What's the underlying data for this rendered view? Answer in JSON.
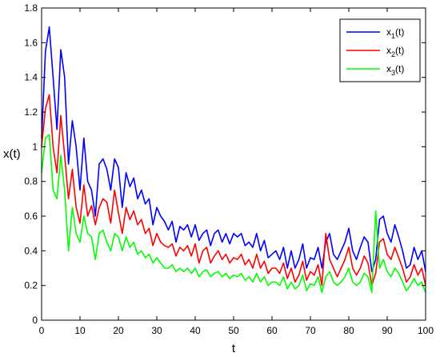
{
  "chart_data": {
    "type": "line",
    "xlabel": "t",
    "ylabel": "x(t)",
    "xlim": [
      0,
      100
    ],
    "ylim": [
      0,
      1.8
    ],
    "x_ticks": [
      0,
      10,
      20,
      30,
      40,
      50,
      60,
      70,
      80,
      90,
      100
    ],
    "x_tick_labels": [
      "0",
      "10",
      "20",
      "30",
      "40",
      "50",
      "60",
      "70",
      "80",
      "90",
      "100"
    ],
    "y_ticks": [
      0,
      0.2,
      0.4,
      0.6,
      0.8,
      1.0,
      1.2,
      1.4,
      1.6,
      1.8
    ],
    "y_tick_labels": [
      "0",
      "0.2",
      "0.4",
      "0.6",
      "0.8",
      "1",
      "1.2",
      "1.4",
      "1.6",
      "1.8"
    ],
    "grid": false,
    "legend_position": "top-right",
    "series": [
      {
        "name": "x1(t)",
        "legend": {
          "base": "x",
          "sub": "1",
          "suffix": "(t)"
        },
        "color": "#0000ff",
        "x": [
          0,
          1,
          2,
          3,
          4,
          5,
          6,
          7,
          8,
          9,
          10,
          11,
          12,
          13,
          14,
          15,
          16,
          17,
          18,
          19,
          20,
          21,
          22,
          23,
          24,
          25,
          26,
          27,
          28,
          29,
          30,
          31,
          32,
          33,
          34,
          35,
          36,
          37,
          38,
          39,
          40,
          41,
          42,
          43,
          44,
          45,
          46,
          47,
          48,
          49,
          50,
          51,
          52,
          53,
          54,
          55,
          56,
          57,
          58,
          59,
          60,
          61,
          62,
          63,
          64,
          65,
          66,
          67,
          68,
          69,
          70,
          71,
          72,
          73,
          74,
          75,
          76,
          77,
          78,
          79,
          80,
          81,
          82,
          83,
          84,
          85,
          86,
          87,
          88,
          89,
          90,
          91,
          92,
          93,
          94,
          95,
          96,
          97,
          98,
          99,
          100
        ],
        "values": [
          1.05,
          1.55,
          1.69,
          1.4,
          1.1,
          1.56,
          1.4,
          0.9,
          1.15,
          1.0,
          0.75,
          1.05,
          0.8,
          0.75,
          0.6,
          0.9,
          0.93,
          0.87,
          0.75,
          0.93,
          0.88,
          0.65,
          0.85,
          0.77,
          0.82,
          0.7,
          0.75,
          0.67,
          0.7,
          0.55,
          0.65,
          0.6,
          0.57,
          0.52,
          0.57,
          0.45,
          0.54,
          0.52,
          0.55,
          0.48,
          0.55,
          0.46,
          0.5,
          0.52,
          0.43,
          0.5,
          0.52,
          0.45,
          0.5,
          0.44,
          0.5,
          0.48,
          0.5,
          0.43,
          0.45,
          0.42,
          0.5,
          0.4,
          0.46,
          0.36,
          0.38,
          0.4,
          0.35,
          0.42,
          0.3,
          0.4,
          0.3,
          0.35,
          0.44,
          0.3,
          0.36,
          0.35,
          0.42,
          0.3,
          0.45,
          0.5,
          0.38,
          0.35,
          0.4,
          0.45,
          0.53,
          0.4,
          0.35,
          0.42,
          0.48,
          0.45,
          0.28,
          0.35,
          0.58,
          0.6,
          0.5,
          0.45,
          0.55,
          0.48,
          0.4,
          0.3,
          0.32,
          0.42,
          0.35,
          0.4,
          0.28
        ]
      },
      {
        "name": "x2(t)",
        "legend": {
          "base": "x",
          "sub": "2",
          "suffix": "(t)"
        },
        "color": "#ff0000",
        "x": [
          0,
          1,
          2,
          3,
          4,
          5,
          6,
          7,
          8,
          9,
          10,
          11,
          12,
          13,
          14,
          15,
          16,
          17,
          18,
          19,
          20,
          21,
          22,
          23,
          24,
          25,
          26,
          27,
          28,
          29,
          30,
          31,
          32,
          33,
          34,
          35,
          36,
          37,
          38,
          39,
          40,
          41,
          42,
          43,
          44,
          45,
          46,
          47,
          48,
          49,
          50,
          51,
          52,
          53,
          54,
          55,
          56,
          57,
          58,
          59,
          60,
          61,
          62,
          63,
          64,
          65,
          66,
          67,
          68,
          69,
          70,
          71,
          72,
          73,
          74,
          75,
          76,
          77,
          78,
          79,
          80,
          81,
          82,
          83,
          84,
          85,
          86,
          87,
          88,
          89,
          90,
          91,
          92,
          93,
          94,
          95,
          96,
          97,
          98,
          99,
          100
        ],
        "values": [
          1.0,
          1.22,
          1.3,
          1.0,
          0.85,
          1.18,
          0.95,
          0.7,
          0.87,
          0.65,
          0.56,
          0.78,
          0.6,
          0.66,
          0.55,
          0.65,
          0.7,
          0.68,
          0.56,
          0.75,
          0.62,
          0.5,
          0.65,
          0.58,
          0.63,
          0.55,
          0.58,
          0.5,
          0.53,
          0.43,
          0.5,
          0.45,
          0.43,
          0.42,
          0.44,
          0.37,
          0.42,
          0.4,
          0.43,
          0.37,
          0.44,
          0.33,
          0.4,
          0.42,
          0.33,
          0.37,
          0.4,
          0.35,
          0.38,
          0.33,
          0.36,
          0.35,
          0.38,
          0.32,
          0.35,
          0.3,
          0.38,
          0.3,
          0.34,
          0.27,
          0.3,
          0.3,
          0.27,
          0.33,
          0.24,
          0.3,
          0.22,
          0.26,
          0.34,
          0.23,
          0.28,
          0.26,
          0.32,
          0.2,
          0.5,
          0.35,
          0.3,
          0.25,
          0.3,
          0.35,
          0.42,
          0.3,
          0.26,
          0.3,
          0.37,
          0.33,
          0.2,
          0.27,
          0.45,
          0.47,
          0.38,
          0.35,
          0.42,
          0.36,
          0.3,
          0.22,
          0.25,
          0.32,
          0.26,
          0.3,
          0.2
        ]
      },
      {
        "name": "x3(t)",
        "legend": {
          "base": "x",
          "sub": "3",
          "suffix": "(t)"
        },
        "color": "#00ff00",
        "x": [
          0,
          1,
          2,
          3,
          4,
          5,
          6,
          7,
          8,
          9,
          10,
          11,
          12,
          13,
          14,
          15,
          16,
          17,
          18,
          19,
          20,
          21,
          22,
          23,
          24,
          25,
          26,
          27,
          28,
          29,
          30,
          31,
          32,
          33,
          34,
          35,
          36,
          37,
          38,
          39,
          40,
          41,
          42,
          43,
          44,
          45,
          46,
          47,
          48,
          49,
          50,
          51,
          52,
          53,
          54,
          55,
          56,
          57,
          58,
          59,
          60,
          61,
          62,
          63,
          64,
          65,
          66,
          67,
          68,
          69,
          70,
          71,
          72,
          73,
          74,
          75,
          76,
          77,
          78,
          79,
          80,
          81,
          82,
          83,
          84,
          85,
          86,
          87,
          88,
          89,
          90,
          91,
          92,
          93,
          94,
          95,
          96,
          97,
          98,
          99,
          100
        ],
        "values": [
          0.85,
          1.05,
          1.07,
          0.75,
          0.7,
          0.95,
          0.75,
          0.4,
          0.65,
          0.5,
          0.45,
          0.6,
          0.5,
          0.48,
          0.35,
          0.5,
          0.52,
          0.45,
          0.4,
          0.5,
          0.48,
          0.4,
          0.48,
          0.42,
          0.45,
          0.38,
          0.4,
          0.36,
          0.38,
          0.33,
          0.36,
          0.33,
          0.3,
          0.3,
          0.32,
          0.28,
          0.3,
          0.28,
          0.3,
          0.27,
          0.3,
          0.25,
          0.28,
          0.29,
          0.25,
          0.27,
          0.28,
          0.25,
          0.27,
          0.24,
          0.26,
          0.25,
          0.27,
          0.23,
          0.25,
          0.22,
          0.27,
          0.22,
          0.25,
          0.2,
          0.22,
          0.22,
          0.2,
          0.25,
          0.18,
          0.22,
          0.18,
          0.2,
          0.26,
          0.17,
          0.21,
          0.2,
          0.25,
          0.16,
          0.25,
          0.28,
          0.22,
          0.2,
          0.22,
          0.25,
          0.3,
          0.22,
          0.2,
          0.22,
          0.27,
          0.25,
          0.16,
          0.63,
          0.3,
          0.35,
          0.28,
          0.25,
          0.3,
          0.27,
          0.22,
          0.17,
          0.2,
          0.24,
          0.2,
          0.22,
          0.16
        ]
      }
    ]
  }
}
